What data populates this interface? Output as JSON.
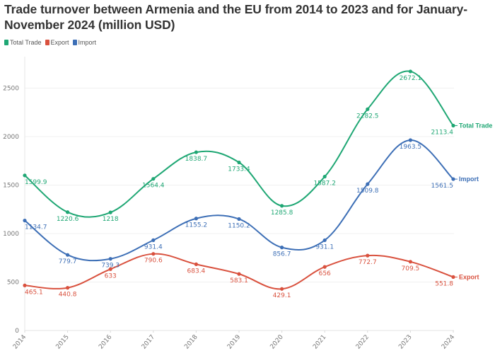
{
  "chart_data": {
    "type": "line",
    "title": "Trade turnover between Armenia and the EU from 2014 to 2023 and for January-November 2024 (million USD)",
    "xlabel": "",
    "ylabel": "",
    "x": [
      "2014",
      "2015",
      "2016",
      "2017",
      "2018",
      "2019",
      "2020",
      "2021",
      "2022",
      "2023",
      "2024"
    ],
    "ylim": [
      0,
      2800
    ],
    "yticks": [
      0,
      500,
      1000,
      1500,
      2000,
      2500
    ],
    "grid": true,
    "legend_position": "top-left",
    "series": [
      {
        "name": "Total Trade",
        "color": "#1fa774",
        "values": [
          1599.9,
          1220.6,
          1218,
          1564.4,
          1838.7,
          1733.4,
          1285.8,
          1587.2,
          2282.5,
          2672.1,
          2113.4
        ],
        "labels": [
          "1599.9",
          "1220.6",
          "1218",
          "1564.4",
          "1838.7",
          "1733.4",
          "1285.8",
          "1587.2",
          "2282.5",
          "2672.1",
          "2113.4"
        ]
      },
      {
        "name": "Export",
        "color": "#d9513e",
        "values": [
          465.1,
          440.8,
          633,
          790.6,
          683.4,
          583.1,
          429.1,
          656,
          772.7,
          709.5,
          551.8
        ],
        "labels": [
          "465.1",
          "440.8",
          "633",
          "790.6",
          "683.4",
          "583.1",
          "429.1",
          "656",
          "772.7",
          "709.5",
          "551.8"
        ]
      },
      {
        "name": "Import",
        "color": "#3d6fb6",
        "values": [
          1134.7,
          779.7,
          739.3,
          931.4,
          1155.2,
          1150.2,
          856.7,
          931.1,
          1509.8,
          1963.5,
          1561.5
        ],
        "labels": [
          "1134.7",
          "779.7",
          "739.3",
          "931.4",
          "1155.2",
          "1150.2",
          "856.7",
          "931.1",
          "1509.8",
          "1963.5",
          "1561.5"
        ]
      }
    ]
  },
  "legend": {
    "items": [
      {
        "label": "Total Trade",
        "color": "#1fa774"
      },
      {
        "label": "Export",
        "color": "#d9513e"
      },
      {
        "label": "Import",
        "color": "#3d6fb6"
      }
    ]
  }
}
